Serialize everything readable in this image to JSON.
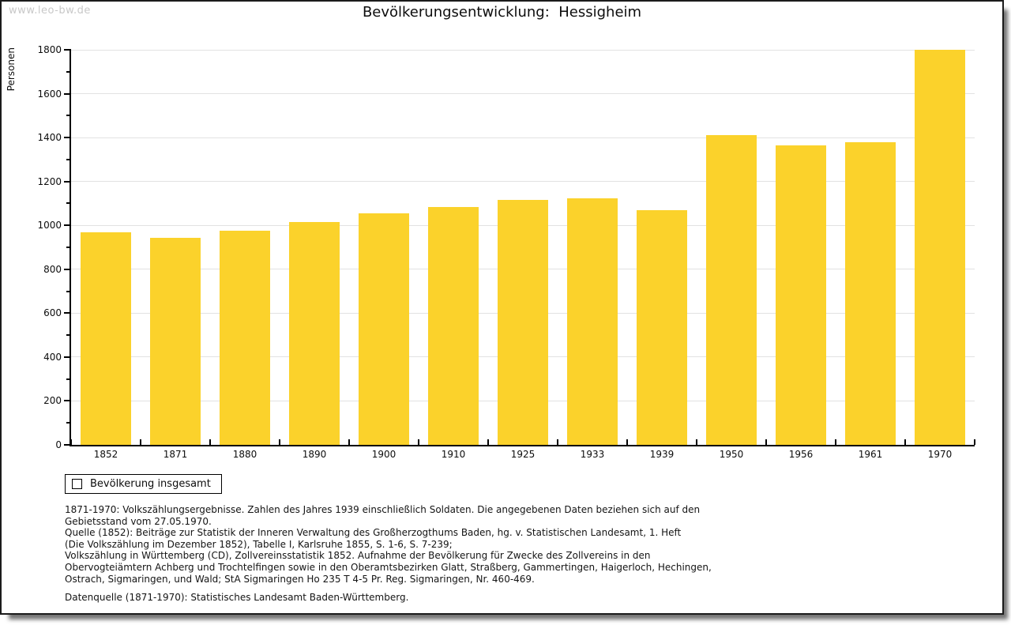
{
  "watermark": "www.leo-bw.de",
  "header": {
    "title": "Bevölkerungsentwicklung:  Hessigheim"
  },
  "colors": {
    "bar": "#fbd22b",
    "grid": "#e2e2e2",
    "axis": "#000000",
    "watermark": "#c8c8c8"
  },
  "chart_data": {
    "type": "bar",
    "title": "Bevölkerungsentwicklung: Hessigheim",
    "xlabel": "",
    "ylabel": "Personen",
    "categories": [
      "1852",
      "1871",
      "1880",
      "1890",
      "1900",
      "1910",
      "1925",
      "1933",
      "1939",
      "1950",
      "1956",
      "1961",
      "1970"
    ],
    "values": [
      970,
      945,
      975,
      1015,
      1055,
      1085,
      1115,
      1125,
      1070,
      1410,
      1365,
      1380,
      1800
    ],
    "series_name": "Bevölkerung insgesamt",
    "ylim": [
      0,
      1800
    ],
    "ytick_step": 200,
    "yminor_step": 100,
    "grid": true,
    "legend_position": "bottom-left"
  },
  "legend": {
    "label": "Bevölkerung insgesamt"
  },
  "footnotes": {
    "notes": [
      "1871-1970: Volkszählungsergebnisse. Zahlen des Jahres 1939 einschließlich Soldaten. Die angegebenen Daten beziehen sich auf den",
      "Gebietsstand vom 27.05.1970.",
      "Quelle (1852): Beiträge zur Statistik der Inneren Verwaltung des Großherzogthums Baden, hg. v. Statistischen Landesamt, 1. Heft",
      "(Die Volkszählung im Dezember 1852), Tabelle I, Karlsruhe 1855, S. 1-6, S. 7-239;",
      "Volkszählung in Württemberg (CD), Zollvereinsstatistik 1852. Aufnahme der Bevölkerung für Zwecke des Zollvereins in den",
      "Obervogteiämtern Achberg und Trochtelfingen sowie in den Oberamtsbezirken Glatt, Straßberg, Gammertingen, Haigerloch, Hechingen,",
      "Ostrach, Sigmaringen, und Wald; StA Sigmaringen Ho 235 T 4-5 Pr. Reg. Sigmaringen, Nr. 460-469."
    ],
    "source": "Datenquelle (1871-1970): Statistisches Landesamt Baden-Württemberg."
  }
}
